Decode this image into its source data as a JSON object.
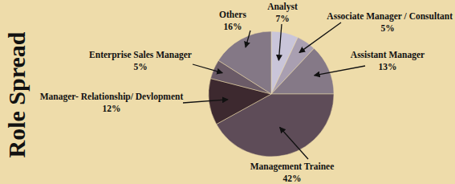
{
  "chart_data": {
    "type": "pie",
    "title": "Role Spread",
    "categories": [
      "Analyst",
      "Associate Manager / Consultant",
      "Assistant Manager",
      "Management Trainee",
      "Manager- Relationship/ Devlopment",
      "Enterprise Sales Manager",
      "Others"
    ],
    "values": [
      7,
      5,
      13,
      42,
      12,
      5,
      16
    ],
    "value_labels": [
      "7%",
      "5%",
      "13%",
      "42%",
      "12%",
      "5%",
      "16%"
    ],
    "colors": [
      "#c9c5d9",
      "#a99fb1",
      "#857987",
      "#5e4c58",
      "#3d292f",
      "#6b5b67",
      "#847886"
    ],
    "data_labels": true
  }
}
